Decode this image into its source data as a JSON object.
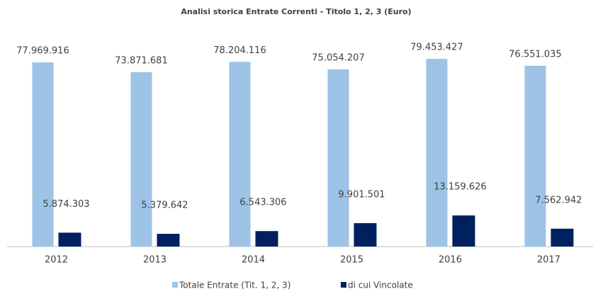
{
  "chart_data": {
    "type": "bar",
    "title": "Analisi storica Entrate Correnti - Titolo 1, 2, 3 (Euro)",
    "categories": [
      "2012",
      "2013",
      "2014",
      "2015",
      "2016",
      "2017"
    ],
    "series": [
      {
        "name": "Totale Entrate (Tit. 1, 2, 3)",
        "color": "#9dc3e6",
        "values": [
          77969916,
          73871681,
          78204116,
          75054207,
          79453427,
          76551035
        ],
        "value_labels": [
          "77.969.916",
          "73.871.681",
          "78.204.116",
          "75.054.207",
          "79.453.427",
          "76.551.035"
        ]
      },
      {
        "name": "di cui Vincolate",
        "color": "#002060",
        "values": [
          5874303,
          5379642,
          6543306,
          9901501,
          13159626,
          7562942
        ],
        "value_labels": [
          "5.874.303",
          "5.379.642",
          "6.543.306",
          "9.901.501",
          "13.159.626",
          "7.562.942"
        ]
      }
    ],
    "ylim": [
      0,
      90000000
    ],
    "legend": "bottom"
  }
}
